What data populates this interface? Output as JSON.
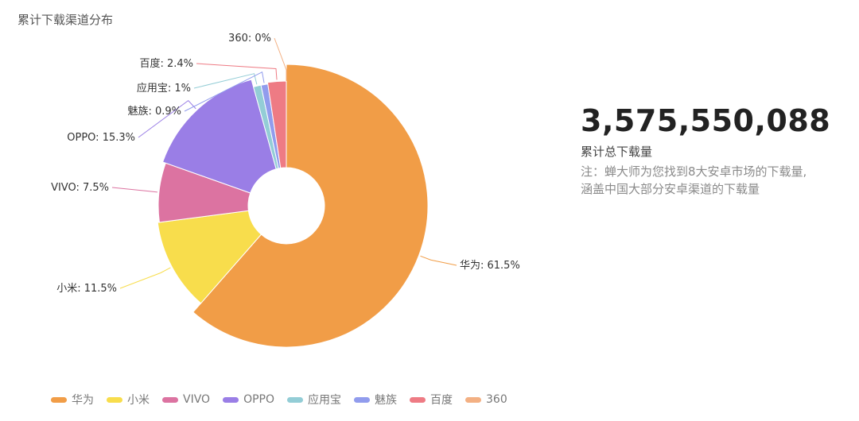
{
  "title": "累计下载渠道分布",
  "stat": {
    "value": "3,575,550,088",
    "label": "累计总下载量",
    "note_line1": "注：蝉大师为您找到8大安卓市场的下载量,",
    "note_line2": "涵盖中国大部分安卓渠道的下载量"
  },
  "chart_data": {
    "type": "pie",
    "variant": "nightingale-donut",
    "title": "累计下载渠道分布",
    "legend_position": "bottom-left",
    "slices": [
      {
        "label": "华为",
        "value": 61.5,
        "color": "#F19D47",
        "data_label": "华为: 61.5%"
      },
      {
        "label": "小米",
        "value": 11.5,
        "color": "#F8DD4C",
        "data_label": "小米: 11.5%"
      },
      {
        "label": "VIVO",
        "value": 7.5,
        "color": "#DC73A1",
        "data_label": "VIVO: 7.5%"
      },
      {
        "label": "OPPO",
        "value": 15.3,
        "color": "#9A7EE6",
        "data_label": "OPPO: 15.3%"
      },
      {
        "label": "应用宝",
        "value": 1,
        "color": "#93CDD6",
        "data_label": "应用宝: 1%"
      },
      {
        "label": "魅族",
        "value": 0.9,
        "color": "#919CED",
        "data_label": "魅族: 0.9%"
      },
      {
        "label": "百度",
        "value": 2.4,
        "color": "#EE7B84",
        "data_label": "百度: 2.4%"
      },
      {
        "label": "360",
        "value": 0,
        "color": "#F3B083",
        "data_label": "360: 0%"
      }
    ]
  }
}
